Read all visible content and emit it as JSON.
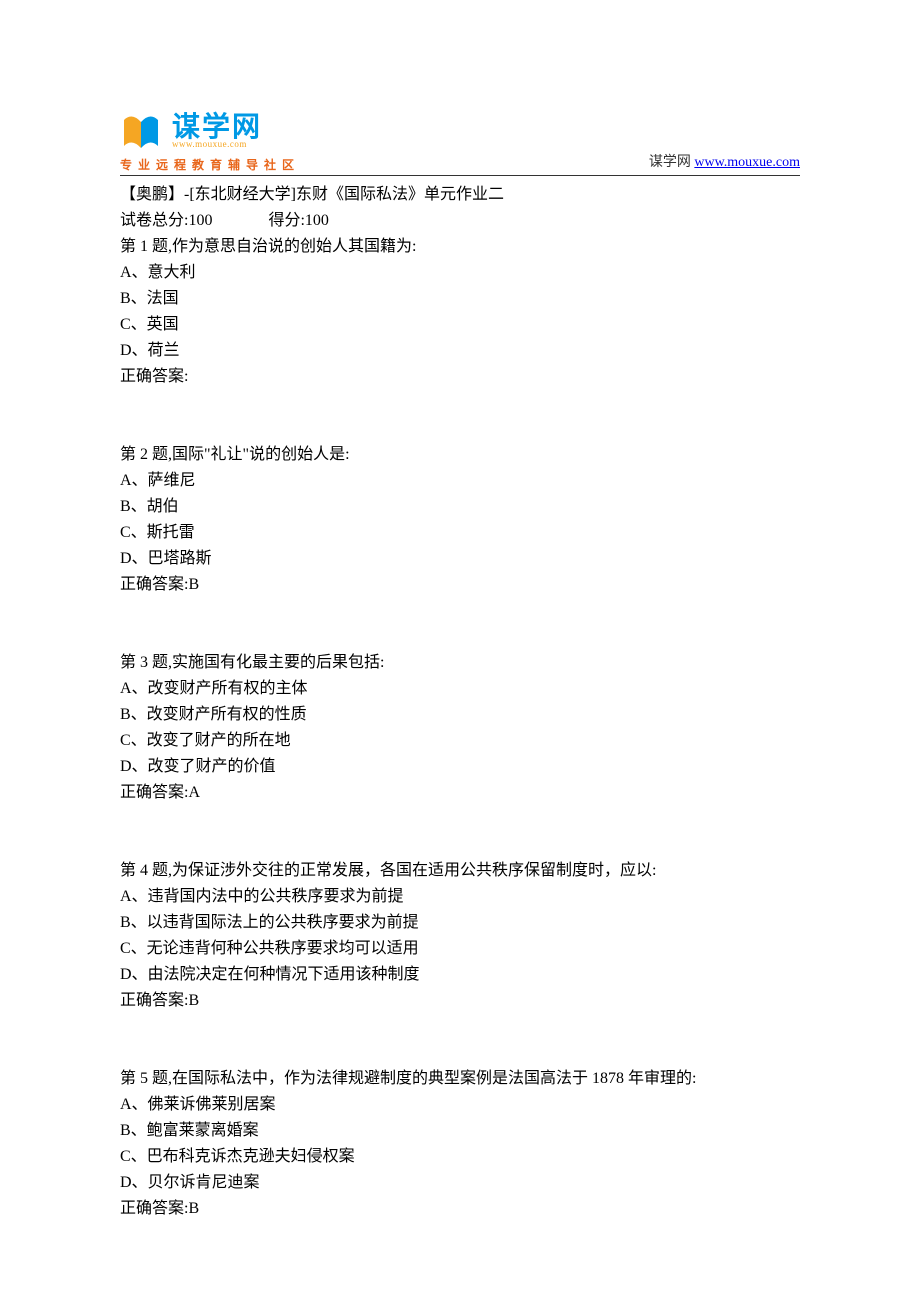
{
  "header": {
    "logo_main": "谋学网",
    "logo_url": "www.mouxue.com",
    "logo_tagline": "专业远程教育辅导社区",
    "site_label": "谋学网 ",
    "site_link_text": "www.mouxue.com",
    "site_link_href": "http://www.mouxue.com"
  },
  "logo_colors": {
    "book_left": "#f5a623",
    "book_right": "#0099e5",
    "text_main": "#0099e5",
    "text_url": "#f5a623",
    "tagline": "#e8661b"
  },
  "title": "【奥鹏】-[东北财经大学]东财《国际私法》单元作业二",
  "score_prefix": "试卷总分:",
  "score_total": "100",
  "score_got_prefix": "得分:",
  "score_got": "100",
  "questions": [
    {
      "stem": "第 1 题,作为意思自治说的创始人其国籍为:",
      "options": [
        "A、意大利",
        "B、法国",
        "C、英国",
        "D、荷兰"
      ],
      "answer_label": "正确答案:",
      "answer": ""
    },
    {
      "stem": "第 2 题,国际\"礼让\"说的创始人是:",
      "options": [
        "A、萨维尼",
        "B、胡伯",
        "C、斯托雷",
        "D、巴塔路斯"
      ],
      "answer_label": "正确答案:",
      "answer": "B"
    },
    {
      "stem": "第 3 题,实施国有化最主要的后果包括:",
      "options": [
        "A、改变财产所有权的主体",
        "B、改变财产所有权的性质",
        "C、改变了财产的所在地",
        "D、改变了财产的价值"
      ],
      "answer_label": "正确答案:",
      "answer": "A"
    },
    {
      "stem": "第 4 题,为保证涉外交往的正常发展，各国在适用公共秩序保留制度时，应以:",
      "options": [
        "A、违背国内法中的公共秩序要求为前提",
        "B、以违背国际法上的公共秩序要求为前提",
        "C、无论违背何种公共秩序要求均可以适用",
        "D、由法院决定在何种情况下适用该种制度"
      ],
      "answer_label": "正确答案:",
      "answer": "B"
    },
    {
      "stem": "第 5 题,在国际私法中，作为法律规避制度的典型案例是法国高法于 1878 年审理的:",
      "options": [
        "A、佛莱诉佛莱别居案",
        "B、鲍富莱蒙离婚案",
        "C、巴布科克诉杰克逊夫妇侵权案",
        "D、贝尔诉肯尼迪案"
      ],
      "answer_label": "正确答案:",
      "answer": "B"
    }
  ]
}
